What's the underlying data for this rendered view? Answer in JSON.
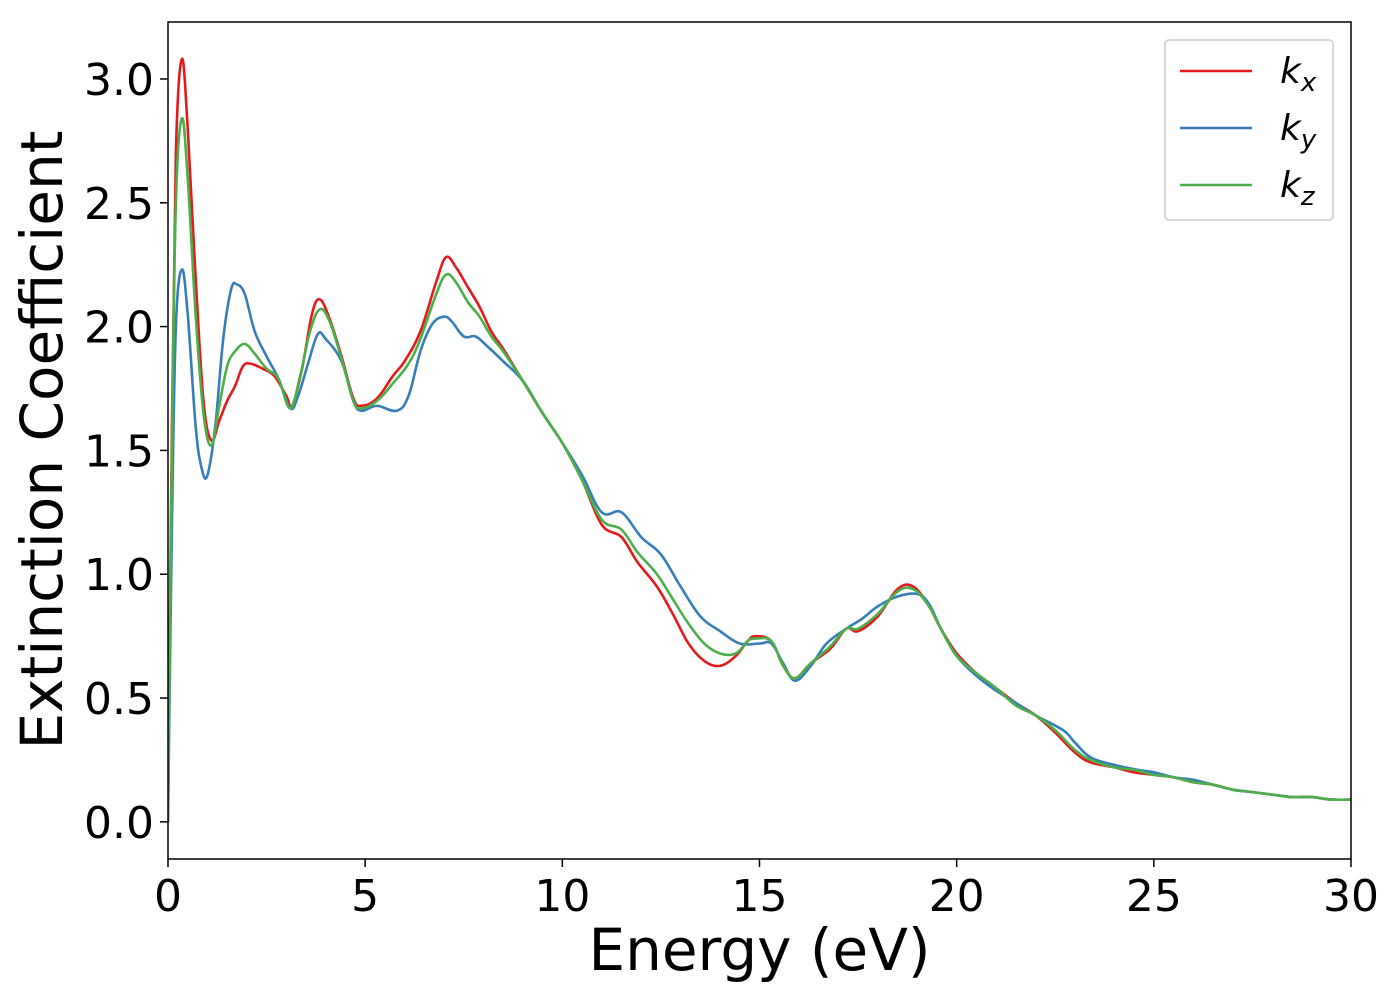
{
  "chart_data": {
    "type": "line",
    "title": "",
    "xlabel": "Energy (eV)",
    "ylabel": "Extinction Coefficient",
    "xlim": [
      0,
      30
    ],
    "ylim": [
      -0.15,
      3.23
    ],
    "xticks": [
      0,
      5,
      10,
      15,
      20,
      25,
      30
    ],
    "xtick_labels": [
      "0",
      "5",
      "10",
      "15",
      "20",
      "25",
      "30"
    ],
    "yticks": [
      0.0,
      0.5,
      1.0,
      1.5,
      2.0,
      2.5,
      3.0
    ],
    "ytick_labels": [
      "0.0",
      "0.5",
      "1.0",
      "1.5",
      "2.0",
      "2.5",
      "3.0"
    ],
    "grid": false,
    "legend_position": "top-right",
    "series": [
      {
        "name": "k",
        "subscript": "x",
        "color": "#e41a1c",
        "points": [
          [
            0,
            0.0
          ],
          [
            0.1,
            1.6
          ],
          [
            0.2,
            2.7
          ],
          [
            0.35,
            3.08
          ],
          [
            0.5,
            2.8
          ],
          [
            0.7,
            2.2
          ],
          [
            0.9,
            1.7
          ],
          [
            1.1,
            1.54
          ],
          [
            1.3,
            1.62
          ],
          [
            1.5,
            1.7
          ],
          [
            1.7,
            1.76
          ],
          [
            1.9,
            1.84
          ],
          [
            2.1,
            1.85
          ],
          [
            2.4,
            1.83
          ],
          [
            2.7,
            1.8
          ],
          [
            3.0,
            1.72
          ],
          [
            3.15,
            1.68
          ],
          [
            3.4,
            1.83
          ],
          [
            3.65,
            2.05
          ],
          [
            3.85,
            2.11
          ],
          [
            4.1,
            2.03
          ],
          [
            4.4,
            1.88
          ],
          [
            4.7,
            1.71
          ],
          [
            4.9,
            1.68
          ],
          [
            5.3,
            1.71
          ],
          [
            5.7,
            1.8
          ],
          [
            6.0,
            1.86
          ],
          [
            6.4,
            1.98
          ],
          [
            6.8,
            2.18
          ],
          [
            7.05,
            2.28
          ],
          [
            7.3,
            2.24
          ],
          [
            7.6,
            2.16
          ],
          [
            7.9,
            2.08
          ],
          [
            8.2,
            1.98
          ],
          [
            8.5,
            1.91
          ],
          [
            9.0,
            1.78
          ],
          [
            9.5,
            1.65
          ],
          [
            10.0,
            1.53
          ],
          [
            10.5,
            1.38
          ],
          [
            11.0,
            1.2
          ],
          [
            11.5,
            1.15
          ],
          [
            11.9,
            1.05
          ],
          [
            12.4,
            0.95
          ],
          [
            12.8,
            0.84
          ],
          [
            13.2,
            0.72
          ],
          [
            13.6,
            0.65
          ],
          [
            14.0,
            0.63
          ],
          [
            14.4,
            0.67
          ],
          [
            14.7,
            0.73
          ],
          [
            14.9,
            0.75
          ],
          [
            15.3,
            0.73
          ],
          [
            15.6,
            0.63
          ],
          [
            15.9,
            0.58
          ],
          [
            16.3,
            0.64
          ],
          [
            16.8,
            0.7
          ],
          [
            17.2,
            0.78
          ],
          [
            17.5,
            0.77
          ],
          [
            18.0,
            0.83
          ],
          [
            18.5,
            0.94
          ],
          [
            18.9,
            0.95
          ],
          [
            19.3,
            0.87
          ],
          [
            19.6,
            0.78
          ],
          [
            20.0,
            0.68
          ],
          [
            20.5,
            0.6
          ],
          [
            21.0,
            0.54
          ],
          [
            21.5,
            0.48
          ],
          [
            22.0,
            0.43
          ],
          [
            22.5,
            0.36
          ],
          [
            23.0,
            0.28
          ],
          [
            23.4,
            0.24
          ],
          [
            24.0,
            0.22
          ],
          [
            24.5,
            0.2
          ],
          [
            25.0,
            0.19
          ],
          [
            25.5,
            0.18
          ],
          [
            26.0,
            0.16
          ],
          [
            26.5,
            0.15
          ],
          [
            27.0,
            0.13
          ],
          [
            27.5,
            0.12
          ],
          [
            28.0,
            0.11
          ],
          [
            28.5,
            0.1
          ],
          [
            29.0,
            0.1
          ],
          [
            29.5,
            0.09
          ],
          [
            30.0,
            0.09
          ]
        ]
      },
      {
        "name": "k",
        "subscript": "y",
        "color": "#377eb8",
        "points": [
          [
            0,
            0.0
          ],
          [
            0.1,
            1.2
          ],
          [
            0.2,
            2.0
          ],
          [
            0.35,
            2.23
          ],
          [
            0.5,
            2.05
          ],
          [
            0.7,
            1.6
          ],
          [
            0.85,
            1.43
          ],
          [
            1.0,
            1.4
          ],
          [
            1.2,
            1.6
          ],
          [
            1.4,
            1.95
          ],
          [
            1.6,
            2.15
          ],
          [
            1.75,
            2.17
          ],
          [
            1.95,
            2.13
          ],
          [
            2.2,
            1.98
          ],
          [
            2.5,
            1.88
          ],
          [
            2.8,
            1.79
          ],
          [
            3.1,
            1.67
          ],
          [
            3.3,
            1.72
          ],
          [
            3.55,
            1.85
          ],
          [
            3.8,
            1.97
          ],
          [
            4.0,
            1.95
          ],
          [
            4.4,
            1.86
          ],
          [
            4.7,
            1.7
          ],
          [
            4.9,
            1.66
          ],
          [
            5.3,
            1.68
          ],
          [
            5.8,
            1.66
          ],
          [
            6.1,
            1.72
          ],
          [
            6.4,
            1.9
          ],
          [
            6.7,
            2.01
          ],
          [
            7.0,
            2.04
          ],
          [
            7.2,
            2.02
          ],
          [
            7.5,
            1.96
          ],
          [
            7.8,
            1.96
          ],
          [
            8.1,
            1.92
          ],
          [
            8.5,
            1.86
          ],
          [
            9.0,
            1.78
          ],
          [
            9.5,
            1.65
          ],
          [
            10.0,
            1.53
          ],
          [
            10.5,
            1.4
          ],
          [
            11.0,
            1.25
          ],
          [
            11.5,
            1.25
          ],
          [
            12.0,
            1.15
          ],
          [
            12.5,
            1.08
          ],
          [
            13.0,
            0.95
          ],
          [
            13.5,
            0.83
          ],
          [
            14.0,
            0.77
          ],
          [
            14.5,
            0.72
          ],
          [
            15.0,
            0.72
          ],
          [
            15.3,
            0.72
          ],
          [
            15.6,
            0.64
          ],
          [
            15.9,
            0.57
          ],
          [
            16.3,
            0.63
          ],
          [
            16.7,
            0.72
          ],
          [
            17.2,
            0.78
          ],
          [
            17.6,
            0.82
          ],
          [
            18.0,
            0.87
          ],
          [
            18.5,
            0.91
          ],
          [
            19.0,
            0.92
          ],
          [
            19.3,
            0.88
          ],
          [
            19.6,
            0.78
          ],
          [
            20.0,
            0.67
          ],
          [
            20.5,
            0.59
          ],
          [
            21.0,
            0.53
          ],
          [
            21.5,
            0.48
          ],
          [
            22.0,
            0.43
          ],
          [
            22.7,
            0.37
          ],
          [
            23.0,
            0.32
          ],
          [
            23.4,
            0.26
          ],
          [
            24.0,
            0.23
          ],
          [
            24.6,
            0.21
          ],
          [
            25.0,
            0.2
          ],
          [
            25.5,
            0.18
          ],
          [
            26.0,
            0.17
          ],
          [
            26.5,
            0.15
          ],
          [
            27.0,
            0.13
          ],
          [
            27.5,
            0.12
          ],
          [
            28.0,
            0.11
          ],
          [
            28.5,
            0.1
          ],
          [
            29.0,
            0.1
          ],
          [
            29.5,
            0.09
          ],
          [
            30.0,
            0.09
          ]
        ]
      },
      {
        "name": "k",
        "subscript": "z",
        "color": "#4daf4a",
        "points": [
          [
            0,
            0.0
          ],
          [
            0.1,
            1.5
          ],
          [
            0.2,
            2.5
          ],
          [
            0.35,
            2.84
          ],
          [
            0.5,
            2.6
          ],
          [
            0.7,
            2.05
          ],
          [
            0.9,
            1.65
          ],
          [
            1.1,
            1.52
          ],
          [
            1.3,
            1.68
          ],
          [
            1.5,
            1.84
          ],
          [
            1.7,
            1.9
          ],
          [
            1.95,
            1.93
          ],
          [
            2.2,
            1.89
          ],
          [
            2.5,
            1.83
          ],
          [
            2.8,
            1.79
          ],
          [
            3.1,
            1.67
          ],
          [
            3.35,
            1.8
          ],
          [
            3.6,
            1.98
          ],
          [
            3.85,
            2.07
          ],
          [
            4.1,
            2.02
          ],
          [
            4.4,
            1.87
          ],
          [
            4.7,
            1.7
          ],
          [
            4.9,
            1.67
          ],
          [
            5.3,
            1.7
          ],
          [
            5.7,
            1.77
          ],
          [
            6.1,
            1.85
          ],
          [
            6.4,
            1.95
          ],
          [
            6.8,
            2.13
          ],
          [
            7.05,
            2.21
          ],
          [
            7.3,
            2.18
          ],
          [
            7.6,
            2.1
          ],
          [
            7.9,
            2.04
          ],
          [
            8.2,
            1.96
          ],
          [
            8.5,
            1.9
          ],
          [
            9.0,
            1.78
          ],
          [
            9.5,
            1.65
          ],
          [
            10.0,
            1.53
          ],
          [
            10.5,
            1.38
          ],
          [
            11.0,
            1.22
          ],
          [
            11.5,
            1.18
          ],
          [
            11.9,
            1.09
          ],
          [
            12.4,
            1.0
          ],
          [
            12.8,
            0.9
          ],
          [
            13.2,
            0.8
          ],
          [
            13.6,
            0.72
          ],
          [
            14.0,
            0.68
          ],
          [
            14.4,
            0.68
          ],
          [
            14.7,
            0.73
          ],
          [
            14.9,
            0.74
          ],
          [
            15.3,
            0.73
          ],
          [
            15.6,
            0.63
          ],
          [
            15.9,
            0.58
          ],
          [
            16.3,
            0.64
          ],
          [
            16.8,
            0.71
          ],
          [
            17.2,
            0.78
          ],
          [
            17.5,
            0.78
          ],
          [
            18.0,
            0.84
          ],
          [
            18.5,
            0.93
          ],
          [
            18.9,
            0.94
          ],
          [
            19.3,
            0.87
          ],
          [
            19.6,
            0.78
          ],
          [
            20.0,
            0.67
          ],
          [
            20.5,
            0.6
          ],
          [
            21.0,
            0.54
          ],
          [
            21.5,
            0.47
          ],
          [
            22.0,
            0.43
          ],
          [
            22.5,
            0.37
          ],
          [
            23.0,
            0.29
          ],
          [
            23.4,
            0.25
          ],
          [
            24.0,
            0.22
          ],
          [
            24.5,
            0.21
          ],
          [
            25.0,
            0.19
          ],
          [
            25.5,
            0.18
          ],
          [
            26.0,
            0.16
          ],
          [
            26.5,
            0.15
          ],
          [
            27.0,
            0.13
          ],
          [
            27.5,
            0.12
          ],
          [
            28.0,
            0.11
          ],
          [
            28.5,
            0.1
          ],
          [
            29.0,
            0.1
          ],
          [
            29.5,
            0.09
          ],
          [
            30.0,
            0.09
          ]
        ]
      }
    ]
  }
}
